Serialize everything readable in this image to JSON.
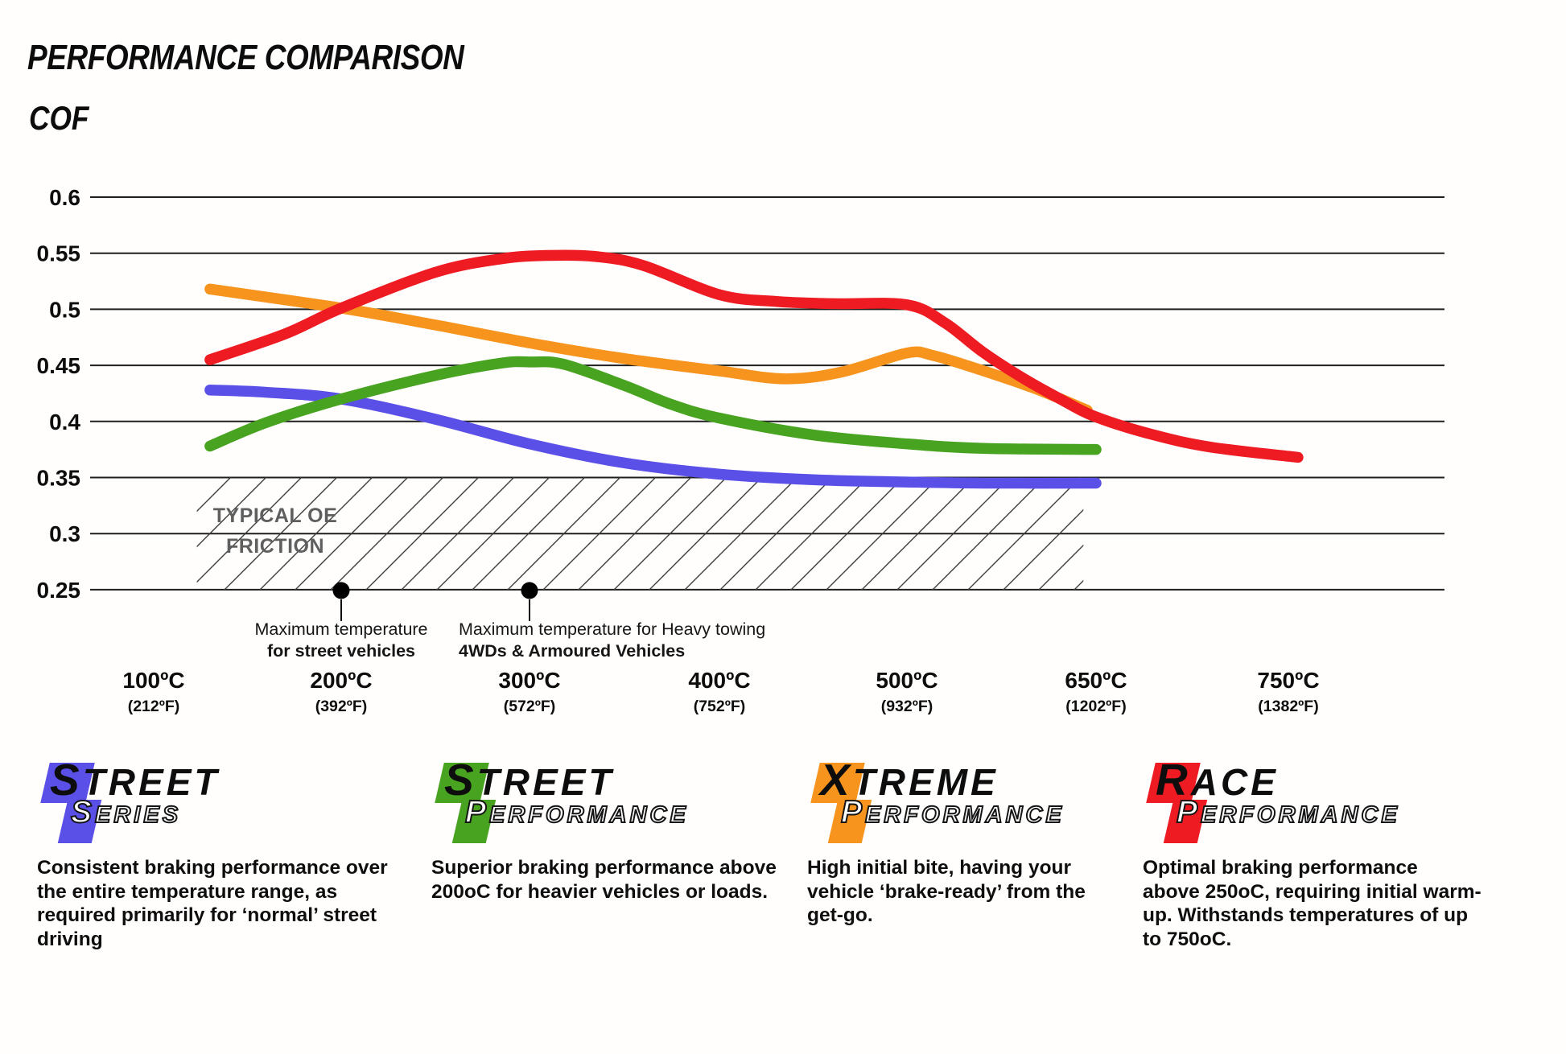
{
  "header": {
    "title": "PERFORMANCE COMPARISON",
    "y_axis_title": "COF"
  },
  "chart_data": {
    "type": "line",
    "title": "PERFORMANCE COMPARISON",
    "ylabel": "COF",
    "ylim": [
      0.25,
      0.6
    ],
    "grid": "horizontal",
    "y_ticks": [
      0.6,
      0.55,
      0.5,
      0.45,
      0.4,
      0.35,
      0.3,
      0.25
    ],
    "x_ticks": [
      {
        "t": 100,
        "c": "100ºC",
        "f": "(212ºF)"
      },
      {
        "t": 200,
        "c": "200ºC",
        "f": "(392ºF)"
      },
      {
        "t": 300,
        "c": "300ºC",
        "f": "(572ºF)"
      },
      {
        "t": 400,
        "c": "400ºC",
        "f": "(752ºF)"
      },
      {
        "t": 500,
        "c": "500ºC",
        "f": "(932ºF)"
      },
      {
        "t": 650,
        "c": "650ºC",
        "f": "(1202ºF)"
      },
      {
        "t": 750,
        "c": "750ºC",
        "f": "(1382ºF)"
      }
    ],
    "series": [
      {
        "name": "Street Series",
        "color": "#5a50e8",
        "points": [
          [
            130,
            0.428
          ],
          [
            160,
            0.426
          ],
          [
            200,
            0.42
          ],
          [
            250,
            0.402
          ],
          [
            300,
            0.38
          ],
          [
            350,
            0.363
          ],
          [
            400,
            0.353
          ],
          [
            450,
            0.348
          ],
          [
            500,
            0.346
          ],
          [
            560,
            0.345
          ],
          [
            650,
            0.345
          ]
        ]
      },
      {
        "name": "Street Performance",
        "color": "#48a320",
        "points": [
          [
            130,
            0.378
          ],
          [
            160,
            0.399
          ],
          [
            200,
            0.42
          ],
          [
            250,
            0.441
          ],
          [
            285,
            0.452
          ],
          [
            300,
            0.453
          ],
          [
            318,
            0.451
          ],
          [
            350,
            0.432
          ],
          [
            375,
            0.415
          ],
          [
            400,
            0.403
          ],
          [
            450,
            0.388
          ],
          [
            500,
            0.38
          ],
          [
            560,
            0.376
          ],
          [
            650,
            0.375
          ]
        ]
      },
      {
        "name": "Xtreme Performance",
        "color": "#f7941e",
        "points": [
          [
            130,
            0.518
          ],
          [
            200,
            0.501
          ],
          [
            250,
            0.486
          ],
          [
            300,
            0.47
          ],
          [
            350,
            0.456
          ],
          [
            400,
            0.445
          ],
          [
            435,
            0.438
          ],
          [
            465,
            0.444
          ],
          [
            500,
            0.461
          ],
          [
            520,
            0.459
          ],
          [
            550,
            0.449
          ],
          [
            600,
            0.43
          ],
          [
            643,
            0.41
          ]
        ]
      },
      {
        "name": "Race Performance",
        "color": "#ee1b22",
        "points": [
          [
            130,
            0.455
          ],
          [
            170,
            0.478
          ],
          [
            200,
            0.501
          ],
          [
            250,
            0.533
          ],
          [
            285,
            0.545
          ],
          [
            310,
            0.548
          ],
          [
            335,
            0.547
          ],
          [
            360,
            0.539
          ],
          [
            400,
            0.513
          ],
          [
            430,
            0.507
          ],
          [
            460,
            0.505
          ],
          [
            500,
            0.504
          ],
          [
            530,
            0.488
          ],
          [
            560,
            0.462
          ],
          [
            590,
            0.44
          ],
          [
            620,
            0.421
          ],
          [
            650,
            0.404
          ],
          [
            680,
            0.388
          ],
          [
            710,
            0.377
          ],
          [
            755,
            0.368
          ]
        ]
      }
    ],
    "oe_band": {
      "label_line1": "TYPICAL OE",
      "label_line2": "FRICTION",
      "cof_top": 0.35,
      "cof_bottom": 0.25,
      "t_start": 123,
      "t_end": 640
    },
    "markers": [
      {
        "t": 200,
        "cof": 0.25,
        "line1": "Maximum temperature",
        "line2": "for street vehicles"
      },
      {
        "t": 300,
        "cof": 0.25,
        "line1": "Maximum temperature for Heavy towing",
        "line2": "4WDs & Armoured Vehicles"
      }
    ]
  },
  "legend": {
    "items": [
      {
        "word1_initial": "S",
        "word1_rest": "TREET",
        "word2_initial": "S",
        "word2_rest": "ERIES",
        "color": "#5a50e8",
        "description": "Consistent braking performance over\nthe entire temperature range, as\nrequired primarily for ‘normal’ street\ndriving"
      },
      {
        "word1_initial": "S",
        "word1_rest": "TREET",
        "word2_initial": "P",
        "word2_rest": "ERFORMANCE",
        "color": "#48a320",
        "description": "Superior braking performance above\n200oC for heavier vehicles or loads."
      },
      {
        "word1_initial": "X",
        "word1_rest": "TREME",
        "word2_initial": "P",
        "word2_rest": "ERFORMANCE",
        "color": "#f7941e",
        "description": "High initial bite, having your\nvehicle ‘brake-ready’ from the\nget-go."
      },
      {
        "word1_initial": "R",
        "word1_rest": "ACE",
        "word2_initial": "P",
        "word2_rest": "ERFORMANCE",
        "color": "#ee1b22",
        "description": "Optimal braking performance\nabove 250oC, requiring initial warm-\nup. Withstands temperatures of up\nto 750oC."
      }
    ]
  }
}
